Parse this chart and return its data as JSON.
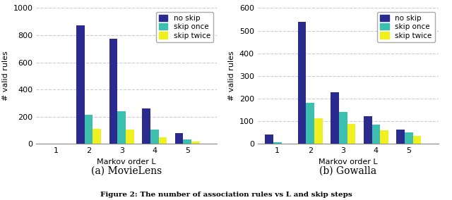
{
  "movielens": {
    "no_skip": [
      2,
      870,
      775,
      260,
      80
    ],
    "skip_once": [
      0,
      215,
      240,
      105,
      35
    ],
    "skip_twice": [
      0,
      110,
      105,
      50,
      20
    ]
  },
  "gowalla": {
    "no_skip": [
      42,
      540,
      228,
      122,
      65
    ],
    "skip_once": [
      8,
      182,
      142,
      85,
      50
    ],
    "skip_twice": [
      0,
      112,
      90,
      60,
      37
    ]
  },
  "x_labels": [
    "1",
    "2",
    "3",
    "4",
    "5"
  ],
  "color_no_skip": "#2a2a8f",
  "color_skip_once": "#3cbfae",
  "color_skip_twice": "#f0f020",
  "ylabel": "# valid rules",
  "xlabel": "Markov order L",
  "ylim_a": [
    0,
    1000
  ],
  "ylim_b": [
    0,
    600
  ],
  "yticks_a": [
    0,
    200,
    400,
    600,
    800,
    1000
  ],
  "yticks_b": [
    0,
    100,
    200,
    300,
    400,
    500,
    600
  ],
  "subtitle_a": "(a) MovieLens",
  "subtitle_b": "(b) Gowalla",
  "legend_labels": [
    "no skip",
    "skip once",
    "skip twice"
  ],
  "figure_caption": "Figure 2: The number of association rules vs L and skip steps",
  "bar_width": 0.25,
  "grid_color": "#cccccc",
  "grid_linestyle": "--"
}
